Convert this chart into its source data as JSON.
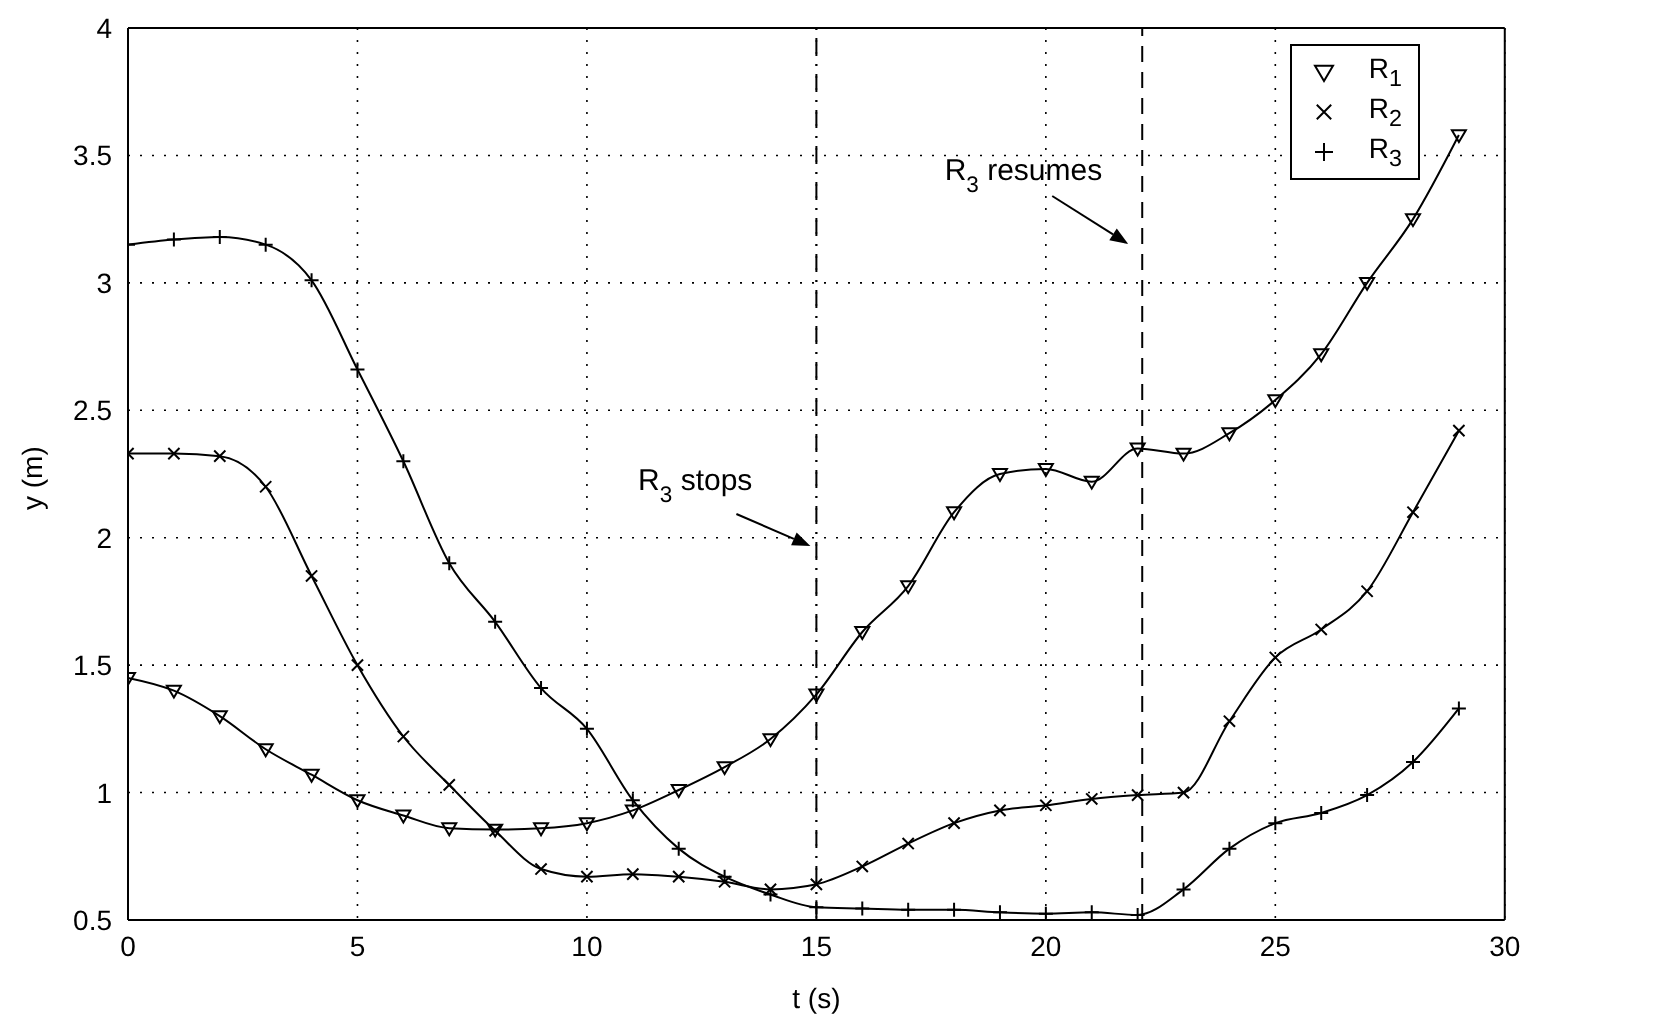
{
  "chart_data": {
    "type": "line",
    "xlabel": "t (s)",
    "ylabel": "y (m)",
    "x": [
      0,
      1,
      2,
      3,
      4,
      5,
      6,
      7,
      8,
      9,
      10,
      11,
      12,
      13,
      14,
      15,
      16,
      17,
      18,
      19,
      20,
      21,
      22,
      23,
      24,
      25,
      26,
      27,
      28,
      29
    ],
    "series": [
      {
        "name": "R$_{1}$",
        "color": "#000000",
        "marker": "triangle",
        "values": [
          1.45,
          1.4,
          1.3,
          1.17,
          1.07,
          0.97,
          0.91,
          0.86,
          0.855,
          0.86,
          0.88,
          0.93,
          1.01,
          1.1,
          1.21,
          1.385,
          1.63,
          1.81,
          2.1,
          2.25,
          2.27,
          2.22,
          2.35,
          2.33,
          2.41,
          2.54,
          2.72,
          3.0,
          3.25,
          3.58
        ]
      },
      {
        "name": "R$_{2}$",
        "color": "#000000",
        "marker": "cross",
        "values": [
          2.33,
          2.33,
          2.32,
          2.2,
          1.85,
          1.5,
          1.22,
          1.03,
          0.85,
          0.7,
          0.67,
          0.68,
          0.67,
          0.65,
          0.62,
          0.64,
          0.71,
          0.8,
          0.88,
          0.93,
          0.95,
          0.975,
          0.99,
          1.0,
          1.28,
          1.53,
          1.64,
          1.79,
          2.1,
          2.42
        ]
      },
      {
        "name": "R$_{3}$",
        "color": "#000000",
        "marker": "plus",
        "values": [
          3.15,
          3.17,
          3.18,
          3.15,
          3.01,
          2.66,
          2.3,
          1.9,
          1.67,
          1.41,
          1.25,
          0.97,
          0.78,
          0.67,
          0.6,
          0.55,
          0.545,
          0.54,
          0.54,
          0.53,
          0.525,
          0.53,
          0.52,
          0.62,
          0.78,
          0.88,
          0.92,
          0.99,
          1.12,
          1.33
        ]
      }
    ],
    "xlim": [
      0,
      30
    ],
    "xticks": [
      0,
      5,
      10,
      15,
      20,
      25,
      30
    ],
    "ylim": [
      0.5,
      4
    ],
    "yticks": [
      0.5,
      1,
      1.5,
      2,
      2.5,
      3,
      3.5,
      4
    ],
    "ref_lines": [
      {
        "axis": "x",
        "value": 15,
        "label": "R$_{3}$ stops",
        "line_style": "dashdot",
        "color": "#000000"
      },
      {
        "axis": "x",
        "value": 22.1,
        "label": "R$_{3}$ resumes",
        "line_style": "dashed",
        "color": "#000000"
      }
    ],
    "grid": true,
    "legend": "top right"
  }
}
